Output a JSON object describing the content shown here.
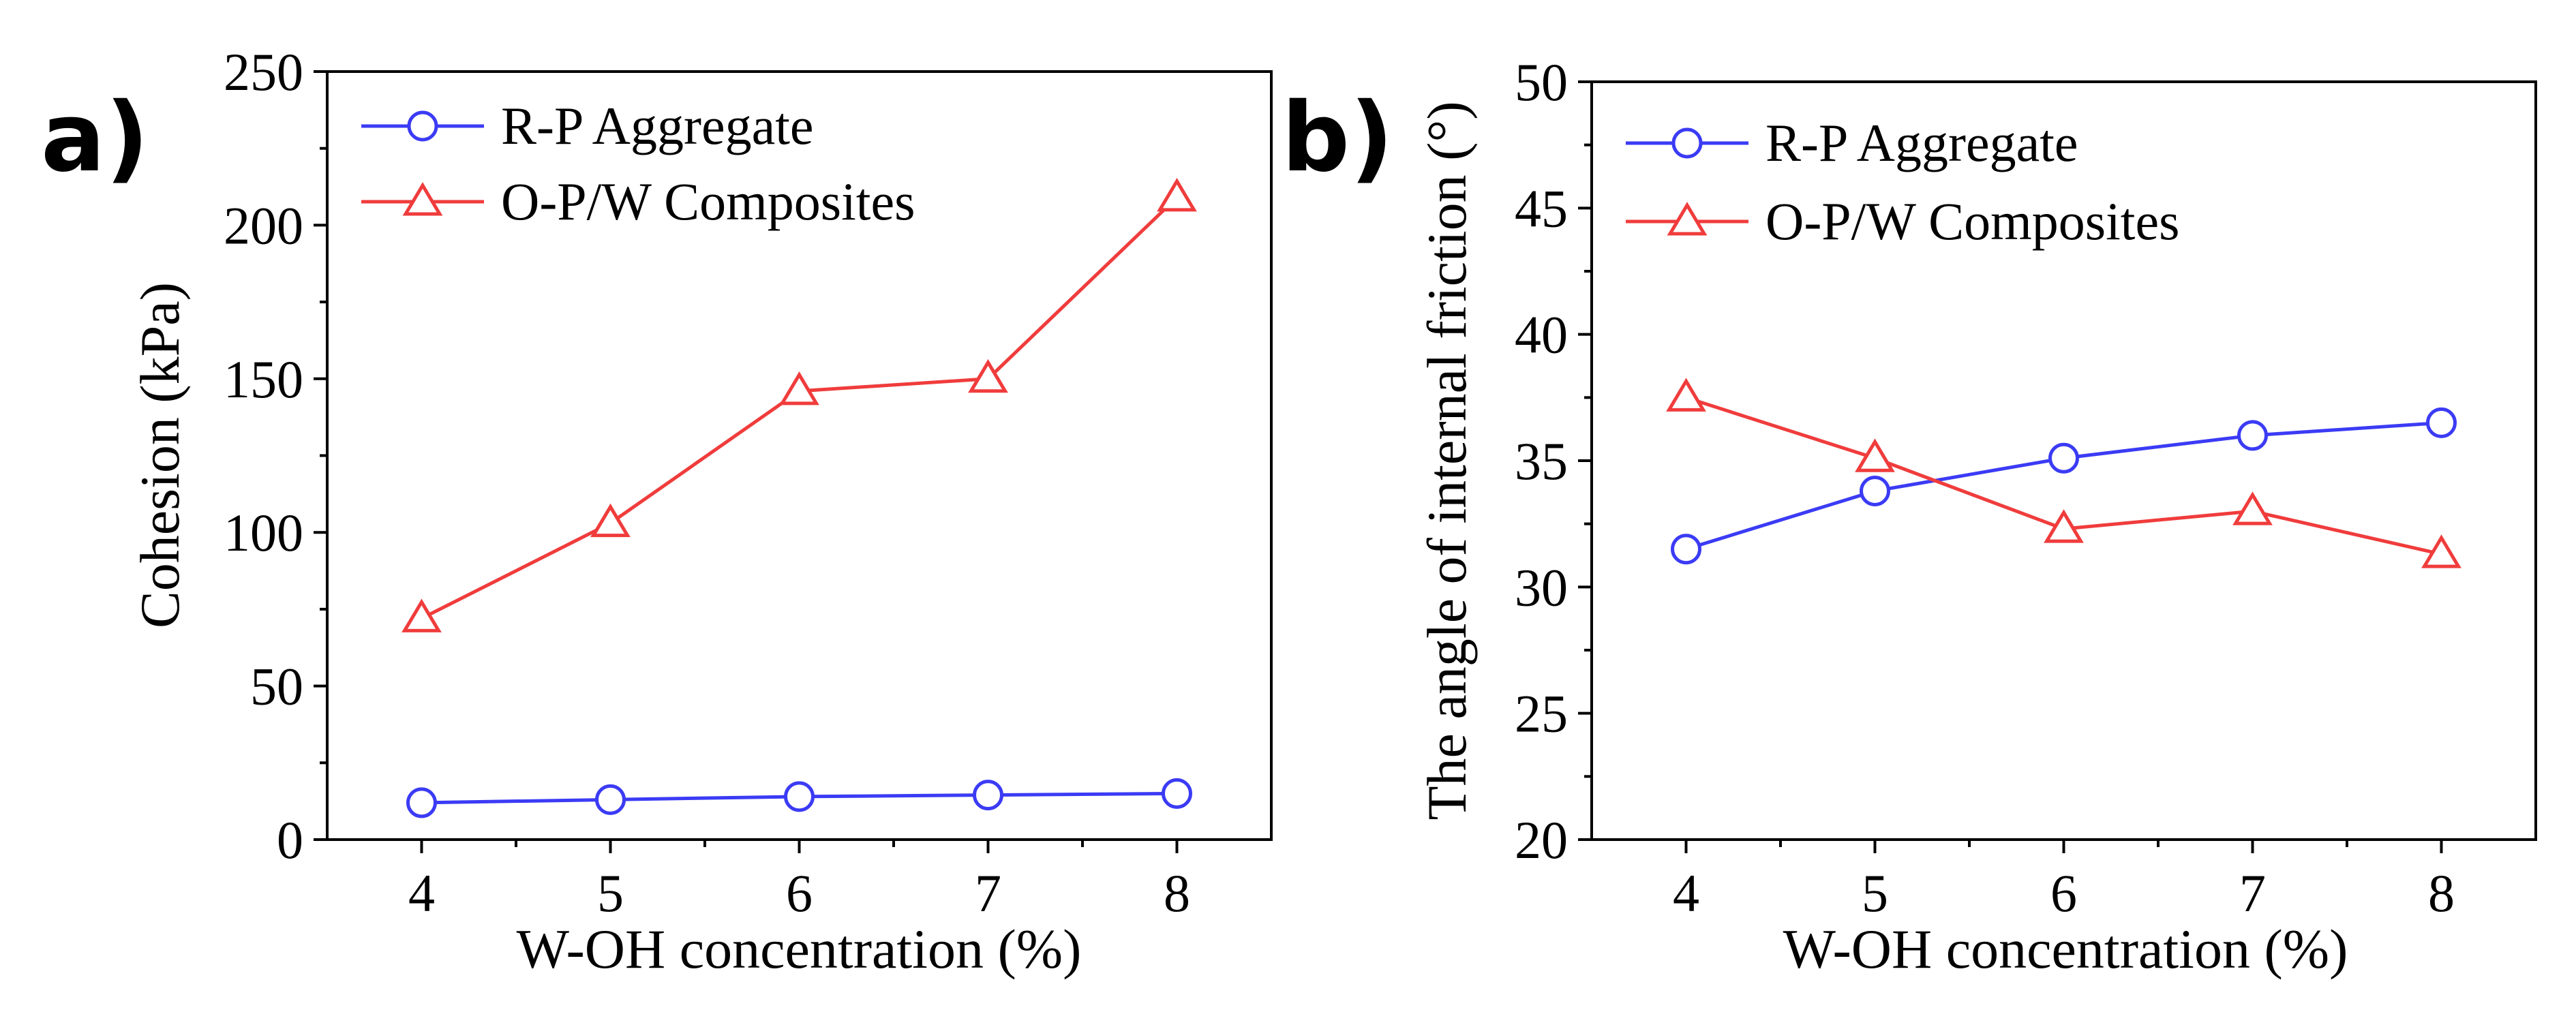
{
  "chart_data": [
    {
      "type": "line",
      "panel_label": "a)",
      "title": "",
      "xlabel": "W-OH concentration (%)",
      "ylabel": "Cohesion (kPa)",
      "x": [
        4,
        5,
        6,
        7,
        8
      ],
      "xlim": [
        3.5,
        8.5
      ],
      "xticks": [
        4,
        5,
        6,
        7,
        8
      ],
      "ylim": [
        0,
        250
      ],
      "yticks": [
        0,
        50,
        100,
        150,
        200,
        250
      ],
      "grid": false,
      "legend_position": "top-left",
      "series": [
        {
          "name": "R-P Aggregate",
          "marker": "circle",
          "color": "#3b3bf5",
          "values": [
            12,
            13,
            14,
            14.5,
            15
          ]
        },
        {
          "name": "O-P/W Composites",
          "marker": "triangle",
          "color": "#f03c3c",
          "values": [
            72,
            103,
            146,
            150,
            209
          ]
        }
      ]
    },
    {
      "type": "line",
      "panel_label": "b)",
      "title": "",
      "xlabel": "W-OH concentration (%)",
      "ylabel": "The angle of internal friction (°)",
      "x": [
        4,
        5,
        6,
        7,
        8
      ],
      "xlim": [
        3.5,
        8.5
      ],
      "xticks": [
        4,
        5,
        6,
        7,
        8
      ],
      "ylim": [
        20,
        50
      ],
      "yticks": [
        20,
        25,
        30,
        35,
        40,
        45,
        50
      ],
      "grid": false,
      "legend_position": "top-left",
      "series": [
        {
          "name": "R-P Aggregate",
          "marker": "circle",
          "color": "#3b3bf5",
          "values": [
            31.5,
            33.8,
            35.1,
            36.0,
            36.5
          ]
        },
        {
          "name": "O-P/W Composites",
          "marker": "triangle",
          "color": "#f03c3c",
          "values": [
            37.5,
            35.1,
            32.3,
            33.0,
            31.3
          ]
        }
      ]
    }
  ]
}
